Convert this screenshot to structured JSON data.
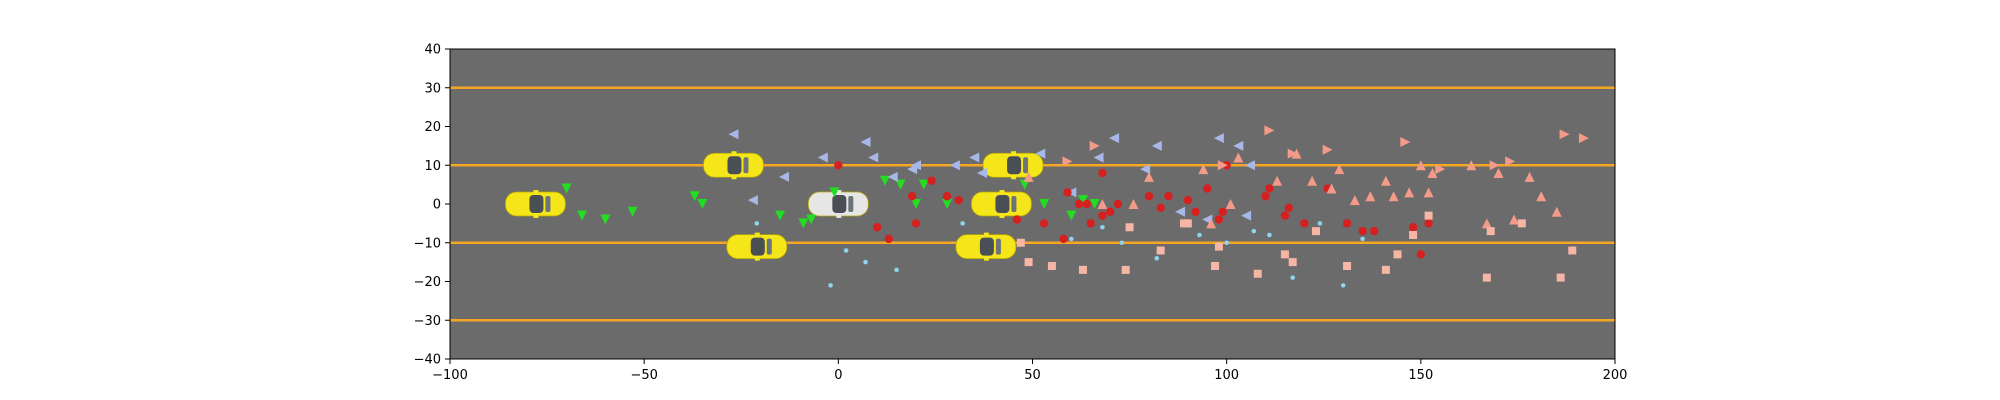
{
  "chart_data": {
    "type": "scatter",
    "title": "",
    "xlabel": "",
    "ylabel": "",
    "xlim": [
      -100,
      200
    ],
    "ylim": [
      -40,
      40
    ],
    "xticks": [
      -100,
      -50,
      0,
      50,
      100,
      150,
      200
    ],
    "yticks": [
      -40,
      -30,
      -20,
      -10,
      0,
      10,
      20,
      30,
      40
    ],
    "grid": false,
    "legend": "none",
    "background": "#6b6b6b",
    "lane_lines": {
      "y": [
        -30,
        -10,
        10,
        30
      ],
      "color": "#f5a623"
    },
    "vehicles": [
      {
        "x": -78,
        "y": 0,
        "color": "#f5e61a",
        "role": "other"
      },
      {
        "x": -27,
        "y": 10,
        "color": "#f5e61a",
        "role": "other"
      },
      {
        "x": -21,
        "y": -11,
        "color": "#f5e61a",
        "role": "other"
      },
      {
        "x": 0,
        "y": 0,
        "color": "#e6e6e6",
        "role": "ego"
      },
      {
        "x": 45,
        "y": 10,
        "color": "#f5e61a",
        "role": "other"
      },
      {
        "x": 42,
        "y": 0,
        "color": "#f5e61a",
        "role": "other"
      },
      {
        "x": 38,
        "y": -11,
        "color": "#f5e61a",
        "role": "other"
      }
    ],
    "series": [
      {
        "marker": "triangle-down",
        "color": "#22dd22",
        "points": [
          [
            -70,
            4
          ],
          [
            -66,
            -3
          ],
          [
            -60,
            -4
          ],
          [
            -53,
            -2
          ],
          [
            -37,
            2
          ],
          [
            -35,
            0
          ],
          [
            -15,
            -3
          ],
          [
            -9,
            -5
          ],
          [
            -7,
            -4
          ],
          [
            -1,
            3
          ],
          [
            12,
            6
          ],
          [
            16,
            5
          ],
          [
            20,
            0
          ],
          [
            22,
            5
          ],
          [
            28,
            0
          ],
          [
            48,
            5
          ],
          [
            53,
            0
          ],
          [
            60,
            -3
          ],
          [
            63,
            1
          ],
          [
            66,
            0
          ]
        ]
      },
      {
        "marker": "triangle-left",
        "color": "#a7b7e8",
        "points": [
          [
            -27,
            18
          ],
          [
            -22,
            1
          ],
          [
            -14,
            7
          ],
          [
            -4,
            12
          ],
          [
            7,
            16
          ],
          [
            9,
            12
          ],
          [
            14,
            7
          ],
          [
            19,
            9
          ],
          [
            20,
            10
          ],
          [
            30,
            10
          ],
          [
            35,
            12
          ],
          [
            37,
            8
          ],
          [
            52,
            13
          ],
          [
            60,
            3
          ],
          [
            67,
            12
          ],
          [
            71,
            17
          ],
          [
            79,
            9
          ],
          [
            82,
            15
          ],
          [
            88,
            -2
          ],
          [
            95,
            -4
          ],
          [
            98,
            17
          ],
          [
            103,
            15
          ],
          [
            105,
            -3
          ],
          [
            106,
            10
          ]
        ]
      },
      {
        "marker": "circle",
        "color": "#d62020",
        "points": [
          [
            0,
            10
          ],
          [
            10,
            -6
          ],
          [
            13,
            -9
          ],
          [
            19,
            2
          ],
          [
            20,
            -5
          ],
          [
            24,
            6
          ],
          [
            28,
            2
          ],
          [
            31,
            1
          ],
          [
            46,
            -4
          ],
          [
            53,
            -5
          ],
          [
            58,
            -9
          ],
          [
            59,
            3
          ],
          [
            62,
            0
          ],
          [
            64,
            0
          ],
          [
            65,
            -5
          ],
          [
            68,
            8
          ],
          [
            68,
            -3
          ],
          [
            70,
            -2
          ],
          [
            72,
            0
          ],
          [
            80,
            2
          ],
          [
            83,
            -1
          ],
          [
            85,
            2
          ],
          [
            90,
            1
          ],
          [
            92,
            -2
          ],
          [
            95,
            4
          ],
          [
            98,
            -4
          ],
          [
            99,
            -2
          ],
          [
            100,
            10
          ],
          [
            110,
            2
          ],
          [
            111,
            4
          ],
          [
            115,
            -3
          ],
          [
            116,
            -1
          ],
          [
            120,
            -5
          ],
          [
            126,
            4
          ],
          [
            131,
            -5
          ],
          [
            135,
            -7
          ],
          [
            138,
            -7
          ],
          [
            148,
            -6
          ],
          [
            150,
            -13
          ],
          [
            152,
            -5
          ]
        ]
      },
      {
        "marker": "triangle-up",
        "color": "#f39a88",
        "points": [
          [
            49,
            7
          ],
          [
            68,
            0
          ],
          [
            76,
            0
          ],
          [
            80,
            7
          ],
          [
            94,
            9
          ],
          [
            96,
            -5
          ],
          [
            101,
            0
          ],
          [
            103,
            12
          ],
          [
            113,
            6
          ],
          [
            118,
            13
          ],
          [
            122,
            6
          ],
          [
            127,
            4
          ],
          [
            129,
            9
          ],
          [
            133,
            1
          ],
          [
            137,
            2
          ],
          [
            141,
            6
          ],
          [
            143,
            2
          ],
          [
            147,
            3
          ],
          [
            150,
            10
          ],
          [
            152,
            3
          ],
          [
            153,
            8
          ],
          [
            163,
            10
          ],
          [
            167,
            -5
          ],
          [
            170,
            8
          ],
          [
            174,
            -4
          ],
          [
            178,
            7
          ],
          [
            181,
            2
          ],
          [
            185,
            -2
          ]
        ]
      },
      {
        "marker": "triangle-right",
        "color": "#f39a88",
        "points": [
          [
            59,
            11
          ],
          [
            66,
            15
          ],
          [
            99,
            10
          ],
          [
            111,
            19
          ],
          [
            117,
            13
          ],
          [
            126,
            14
          ],
          [
            146,
            16
          ],
          [
            155,
            9
          ],
          [
            169,
            10
          ],
          [
            173,
            11
          ],
          [
            187,
            18
          ],
          [
            192,
            17
          ]
        ]
      },
      {
        "marker": "square",
        "color": "#f7b5a5",
        "points": [
          [
            47,
            -10
          ],
          [
            49,
            -15
          ],
          [
            55,
            -16
          ],
          [
            63,
            -17
          ],
          [
            75,
            -6
          ],
          [
            74,
            -17
          ],
          [
            83,
            -12
          ],
          [
            89,
            -5
          ],
          [
            90,
            -5
          ],
          [
            97,
            -16
          ],
          [
            98,
            -11
          ],
          [
            108,
            -18
          ],
          [
            115,
            -13
          ],
          [
            117,
            -15
          ],
          [
            123,
            -7
          ],
          [
            131,
            -16
          ],
          [
            141,
            -17
          ],
          [
            144,
            -13
          ],
          [
            148,
            -8
          ],
          [
            152,
            -3
          ],
          [
            167,
            -19
          ],
          [
            168,
            -7
          ],
          [
            176,
            -5
          ],
          [
            186,
            -19
          ],
          [
            189,
            -12
          ]
        ]
      },
      {
        "marker": "dot",
        "color": "#8fd3ee",
        "points": [
          [
            -21,
            -5
          ],
          [
            -2,
            -21
          ],
          [
            2,
            -12
          ],
          [
            7,
            -15
          ],
          [
            15,
            -17
          ],
          [
            32,
            -5
          ],
          [
            60,
            -9
          ],
          [
            68,
            -6
          ],
          [
            73,
            -10
          ],
          [
            82,
            -14
          ],
          [
            93,
            -8
          ],
          [
            100,
            -10
          ],
          [
            107,
            -7
          ],
          [
            111,
            -8
          ],
          [
            117,
            -19
          ],
          [
            124,
            -5
          ],
          [
            130,
            -21
          ],
          [
            135,
            -9
          ]
        ]
      }
    ]
  }
}
